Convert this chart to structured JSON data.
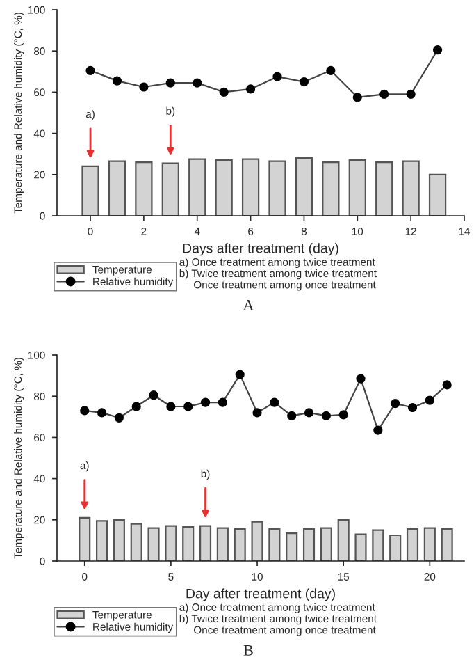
{
  "chart_data": [
    {
      "type": "bar",
      "xlabel": "Days after treatment (day)",
      "ylabel": "Temperature and Relative humidity (°C, %)",
      "xlim": [
        -1.25,
        14
      ],
      "xticks": [
        0,
        2,
        4,
        6,
        8,
        10,
        12,
        14
      ],
      "ylim": [
        0,
        100
      ],
      "yticks": [
        0,
        20,
        40,
        60,
        80,
        100
      ],
      "x": [
        0,
        1,
        2,
        3,
        4,
        5,
        6,
        7,
        8,
        9,
        10,
        11,
        12,
        13
      ],
      "series": [
        {
          "name": "Temperature",
          "color": "#d3d3d3",
          "values": [
            24,
            26.5,
            26,
            25.5,
            27.5,
            27,
            27.5,
            26.5,
            28,
            26,
            27,
            26,
            26.5,
            20
          ]
        },
        {
          "name": "Relative humidity",
          "type": "line",
          "color": "#000000",
          "marker": "circle",
          "values": [
            70.5,
            65.5,
            62.5,
            64.5,
            64.5,
            60,
            61.5,
            67.5,
            65,
            70.5,
            57.5,
            59,
            59,
            80.5
          ]
        }
      ],
      "annotations": [
        {
          "text": "a)",
          "x": 0,
          "y": 24
        },
        {
          "text": "b)",
          "x": 3,
          "y": 25.5
        },
        "a) Once treatment among twice treatment",
        "b) Twice treatment among twice treatment",
        "Once treatment among once treatment",
        "A"
      ],
      "legend": "bottom",
      "grid": false
    },
    {
      "type": "bar",
      "xlabel": "Day after treatment (day)",
      "ylabel": "Temperature and Relative humidity (°C, %)",
      "xlim": [
        -1.6,
        22
      ],
      "xticks": [
        0,
        5,
        10,
        15,
        20
      ],
      "ylim": [
        0,
        100
      ],
      "yticks": [
        0,
        20,
        40,
        60,
        80,
        100
      ],
      "x": [
        0,
        1,
        2,
        3,
        4,
        5,
        6,
        7,
        8,
        9,
        10,
        11,
        12,
        13,
        14,
        15,
        16,
        17,
        18,
        19,
        20,
        21
      ],
      "series": [
        {
          "name": "Temperature",
          "color": "#d3d3d3",
          "values": [
            21,
            19.5,
            20,
            18,
            16,
            17,
            16.5,
            17,
            16,
            15.5,
            19,
            15.5,
            13.5,
            15.5,
            16,
            20,
            13,
            15,
            12.5,
            15.5,
            16,
            15.5
          ]
        },
        {
          "name": "Relative humidity",
          "type": "line",
          "color": "#000000",
          "marker": "circle",
          "values": [
            73,
            72,
            69.5,
            75,
            80.5,
            75,
            75,
            77,
            77,
            90.5,
            72,
            77,
            70.5,
            72,
            70.5,
            71,
            88.5,
            63.5,
            76.5,
            74.5,
            78,
            85.5
          ]
        }
      ],
      "annotations": [
        {
          "text": "a)",
          "x": 0,
          "y": 21
        },
        {
          "text": "b)",
          "x": 7,
          "y": 17
        },
        "a) Once treatment among twice treatment",
        "b) Twice treatment among twice treatment",
        "Once treatment among once treatment",
        "B"
      ],
      "legend": "bottom",
      "grid": false
    }
  ]
}
